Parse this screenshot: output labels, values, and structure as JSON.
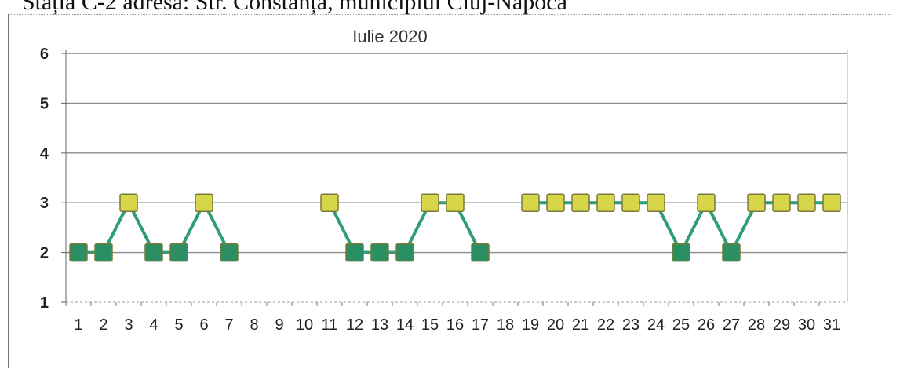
{
  "page": {
    "caption": "Stația C-2 adresa: Str. Constanța, municipiul Cluj-Napoca"
  },
  "chart_data": {
    "type": "line",
    "title": "Iulie 2020",
    "xlabel": "",
    "ylabel": "",
    "categories": [
      "1",
      "2",
      "3",
      "4",
      "5",
      "6",
      "7",
      "8",
      "9",
      "10",
      "11",
      "12",
      "13",
      "14",
      "15",
      "16",
      "17",
      "18",
      "19",
      "20",
      "21",
      "22",
      "23",
      "24",
      "25",
      "26",
      "27",
      "28",
      "29",
      "30",
      "31"
    ],
    "series": [
      {
        "values": [
          2,
          2,
          3,
          2,
          2,
          3,
          2,
          null,
          null,
          null,
          3,
          2,
          2,
          2,
          3,
          3,
          2,
          null,
          3,
          3,
          3,
          3,
          3,
          3,
          2,
          3,
          2,
          3,
          3,
          3,
          3
        ]
      }
    ],
    "ylim": [
      1,
      6
    ],
    "yticks": [
      1,
      2,
      3,
      4,
      5,
      6
    ],
    "grid": true,
    "legend": "none",
    "colors": {
      "line": "#2e9e76",
      "marker_high": "#d7d64a",
      "marker_low": "#2a8f62",
      "marker_border": "#7a7a38",
      "grid": "#8a8a8a"
    }
  }
}
